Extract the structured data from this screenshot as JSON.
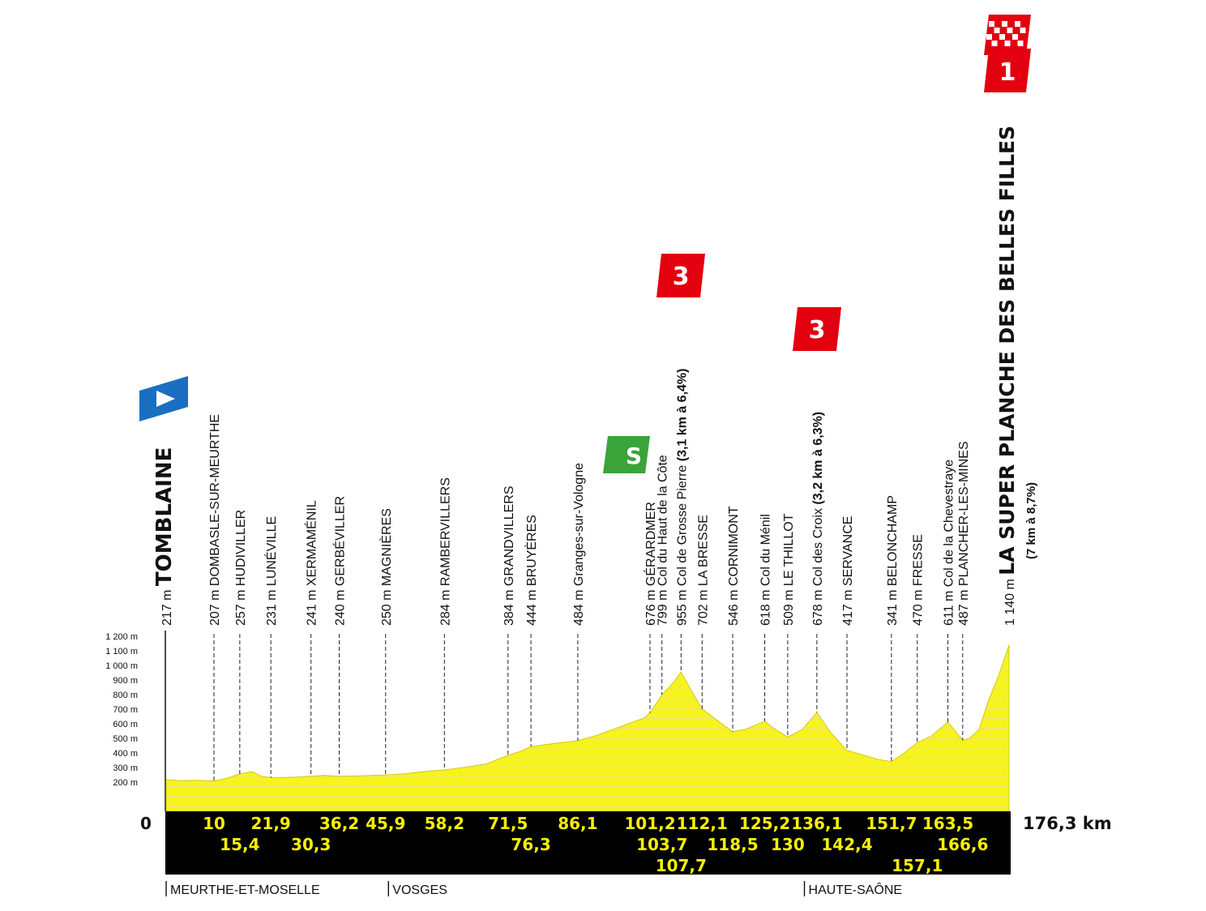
{
  "chart_data": {
    "type": "area",
    "x_unit": "km",
    "distance_total_label": "176,3 km",
    "zero_label": "0",
    "ylim": [
      0,
      1200
    ],
    "ytick_labels": [
      "200 m",
      "300 m",
      "400 m",
      "500 m",
      "600 m",
      "700 m",
      "800 m",
      "900 m",
      "1 000 m",
      "1 100 m",
      "1 200 m"
    ],
    "ytick_values": [
      200,
      300,
      400,
      500,
      600,
      700,
      800,
      900,
      1000,
      1100,
      1200
    ],
    "profile": [
      [
        0,
        217
      ],
      [
        3,
        210
      ],
      [
        7,
        212
      ],
      [
        10,
        207
      ],
      [
        13,
        230
      ],
      [
        15.4,
        257
      ],
      [
        18,
        272
      ],
      [
        20,
        240
      ],
      [
        21.9,
        231
      ],
      [
        25,
        232
      ],
      [
        28,
        236
      ],
      [
        30.3,
        241
      ],
      [
        33,
        246
      ],
      [
        36.2,
        240
      ],
      [
        40,
        243
      ],
      [
        45.9,
        250
      ],
      [
        50,
        258
      ],
      [
        55,
        276
      ],
      [
        58.2,
        284
      ],
      [
        62,
        300
      ],
      [
        67,
        325
      ],
      [
        71.5,
        384
      ],
      [
        74,
        410
      ],
      [
        76.3,
        444
      ],
      [
        80,
        460
      ],
      [
        86.1,
        484
      ],
      [
        90,
        520
      ],
      [
        95,
        580
      ],
      [
        100,
        640
      ],
      [
        101.2,
        676
      ],
      [
        103.7,
        799
      ],
      [
        106,
        880
      ],
      [
        107.7,
        955
      ],
      [
        110,
        820
      ],
      [
        112.1,
        702
      ],
      [
        115,
        630
      ],
      [
        118.5,
        546
      ],
      [
        121,
        560
      ],
      [
        125.2,
        618
      ],
      [
        127,
        570
      ],
      [
        130,
        509
      ],
      [
        133,
        560
      ],
      [
        136.1,
        678
      ],
      [
        139,
        540
      ],
      [
        142.4,
        417
      ],
      [
        146,
        385
      ],
      [
        149,
        355
      ],
      [
        151.7,
        341
      ],
      [
        154,
        390
      ],
      [
        157.1,
        470
      ],
      [
        160,
        515
      ],
      [
        163.5,
        611
      ],
      [
        166.6,
        487
      ],
      [
        168,
        500
      ],
      [
        170,
        560
      ],
      [
        172,
        760
      ],
      [
        174,
        920
      ],
      [
        176.3,
        1140
      ]
    ],
    "places": [
      {
        "km": 0,
        "alt": "217 m",
        "name": "TOMBLAINE",
        "kind": "start"
      },
      {
        "km": 10,
        "alt": "207 m",
        "name": "DOMBASLE-SUR-MEURTHE"
      },
      {
        "km": 15.4,
        "alt": "257 m",
        "name": "HUDIVILLER"
      },
      {
        "km": 21.9,
        "alt": "231 m",
        "name": "LUNÉVILLE"
      },
      {
        "km": 30.3,
        "alt": "241 m",
        "name": "XERMAMÉNIL"
      },
      {
        "km": 36.2,
        "alt": "240 m",
        "name": "GERBÉVILLER"
      },
      {
        "km": 45.9,
        "alt": "250 m",
        "name": "MAGNIÈRES"
      },
      {
        "km": 58.2,
        "alt": "284 m",
        "name": "RAMBERVILLERS"
      },
      {
        "km": 71.5,
        "alt": "384 m",
        "name": "GRANDVILLERS"
      },
      {
        "km": 76.3,
        "alt": "444 m",
        "name": "BRUYÈRES"
      },
      {
        "km": 86.1,
        "alt": "484 m",
        "name": "Granges-sur-Vologne"
      },
      {
        "km": 101.2,
        "alt": "676 m",
        "name": "GÉRARDMER",
        "kind": "sprint"
      },
      {
        "km": 103.7,
        "alt": "799 m",
        "name": "Col du Haut de la Côte"
      },
      {
        "km": 107.7,
        "alt": "955 m",
        "name": "Col de Grosse Pierre",
        "detail": "(3,1 km à 6,4%)",
        "kind": "climb",
        "cat": "3"
      },
      {
        "km": 112.1,
        "alt": "702 m",
        "name": "LA BRESSE"
      },
      {
        "km": 118.5,
        "alt": "546 m",
        "name": "CORNIMONT"
      },
      {
        "km": 125.2,
        "alt": "618 m",
        "name": "Col du Ménil"
      },
      {
        "km": 130,
        "alt": "509 m",
        "name": "LE THILLOT"
      },
      {
        "km": 136.1,
        "alt": "678 m",
        "name": "Col des Croix",
        "detail": "(3,2 km à 6,3%)",
        "kind": "climb",
        "cat": "3"
      },
      {
        "km": 142.4,
        "alt": "417 m",
        "name": "SERVANCE"
      },
      {
        "km": 151.7,
        "alt": "341 m",
        "name": "BELONCHAMP"
      },
      {
        "km": 157.1,
        "alt": "470 m",
        "name": "FRESSE"
      },
      {
        "km": 163.5,
        "alt": "611 m",
        "name": "Col de la Chevestraye"
      },
      {
        "km": 166.6,
        "alt": "487 m",
        "name": "PLANCHER-LES-MINES"
      },
      {
        "km": 176.3,
        "alt": "1 140 m",
        "name": "LA SUPER PLANCHE DES BELLES FILLES",
        "detail": "(7 km à 8,7%)",
        "kind": "finish",
        "cat": "1"
      }
    ],
    "km_labels": [
      {
        "km": 10,
        "text": "10",
        "row": 0
      },
      {
        "km": 15.4,
        "text": "15,4",
        "row": 1
      },
      {
        "km": 21.9,
        "text": "21,9",
        "row": 0
      },
      {
        "km": 30.3,
        "text": "30,3",
        "row": 1
      },
      {
        "km": 36.2,
        "text": "36,2",
        "row": 0
      },
      {
        "km": 45.9,
        "text": "45,9",
        "row": 0
      },
      {
        "km": 58.2,
        "text": "58,2",
        "row": 0
      },
      {
        "km": 71.5,
        "text": "71,5",
        "row": 0
      },
      {
        "km": 76.3,
        "text": "76,3",
        "row": 1
      },
      {
        "km": 86.1,
        "text": "86,1",
        "row": 0
      },
      {
        "km": 101.2,
        "text": "101,2",
        "row": 0
      },
      {
        "km": 103.7,
        "text": "103,7",
        "row": 1
      },
      {
        "km": 107.7,
        "text": "107,7",
        "row": 2
      },
      {
        "km": 112.1,
        "text": "112,1",
        "row": 0
      },
      {
        "km": 118.5,
        "text": "118,5",
        "row": 1
      },
      {
        "km": 125.2,
        "text": "125,2",
        "row": 0
      },
      {
        "km": 130,
        "text": "130",
        "row": 1
      },
      {
        "km": 136.1,
        "text": "136,1",
        "row": 0
      },
      {
        "km": 142.4,
        "text": "142,4",
        "row": 1
      },
      {
        "km": 151.7,
        "text": "151,7",
        "row": 0
      },
      {
        "km": 157.1,
        "text": "157,1",
        "row": 2
      },
      {
        "km": 163.5,
        "text": "163,5",
        "row": 0
      },
      {
        "km": 166.6,
        "text": "166,6",
        "row": 1
      }
    ],
    "regions": [
      {
        "km": 0,
        "name": "MEURTHE-ET-MOSELLE"
      },
      {
        "km": 46.5,
        "name": "VOSGES"
      },
      {
        "km": 133.5,
        "name": "HAUTE-SAÔNE"
      }
    ],
    "colors": {
      "profile_fill": "#f7f31d",
      "profile_stripe": "#ece37a",
      "band": "#000000",
      "km_text": "#f4f000",
      "start_marker": "#1a6fc0",
      "sprint_marker": "#3aa33a",
      "climb_marker": "#e3000f"
    },
    "icons": {
      "start": "start-arrow-icon",
      "sprint": "sprint-s-icon",
      "finish": "checkered-flag-icon"
    }
  }
}
